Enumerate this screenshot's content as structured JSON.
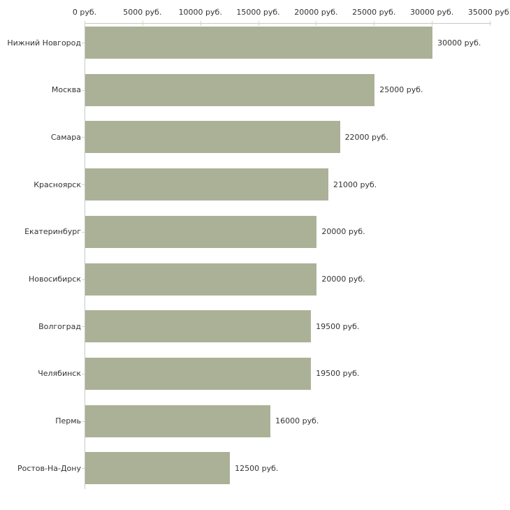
{
  "chart_data": {
    "type": "bar",
    "orientation": "horizontal",
    "categories": [
      "Нижний Новгород",
      "Москва",
      "Самара",
      "Красноярск",
      "Екатеринбург",
      "Новосибирск",
      "Волгоград",
      "Челябинск",
      "Пермь",
      "Ростов-На-Дону"
    ],
    "values": [
      30000,
      25000,
      22000,
      21000,
      20000,
      20000,
      19500,
      19500,
      16000,
      12500
    ],
    "value_labels": [
      "30000 руб.",
      "25000 руб.",
      "22000 руб.",
      "21000 руб.",
      "20000 руб.",
      "20000 руб.",
      "19500 руб.",
      "19500 руб.",
      "16000 руб.",
      "12500 руб."
    ],
    "x_axis": {
      "position": "top",
      "xlim": [
        0,
        35000
      ],
      "ticks": [
        0,
        5000,
        10000,
        15000,
        20000,
        25000,
        30000,
        35000
      ],
      "tick_labels": [
        "0 руб.",
        "5000 руб.",
        "10000 руб.",
        "15000 руб.",
        "20000 руб.",
        "25000 руб.",
        "30000 руб.",
        "35000 руб."
      ]
    },
    "grid": false,
    "legend": null,
    "colors": {
      "bar": "#aab197",
      "axis_line": "#c8c8c8",
      "tick": "#d4d8b2",
      "text": "#333333",
      "background": "#ffffff"
    }
  }
}
